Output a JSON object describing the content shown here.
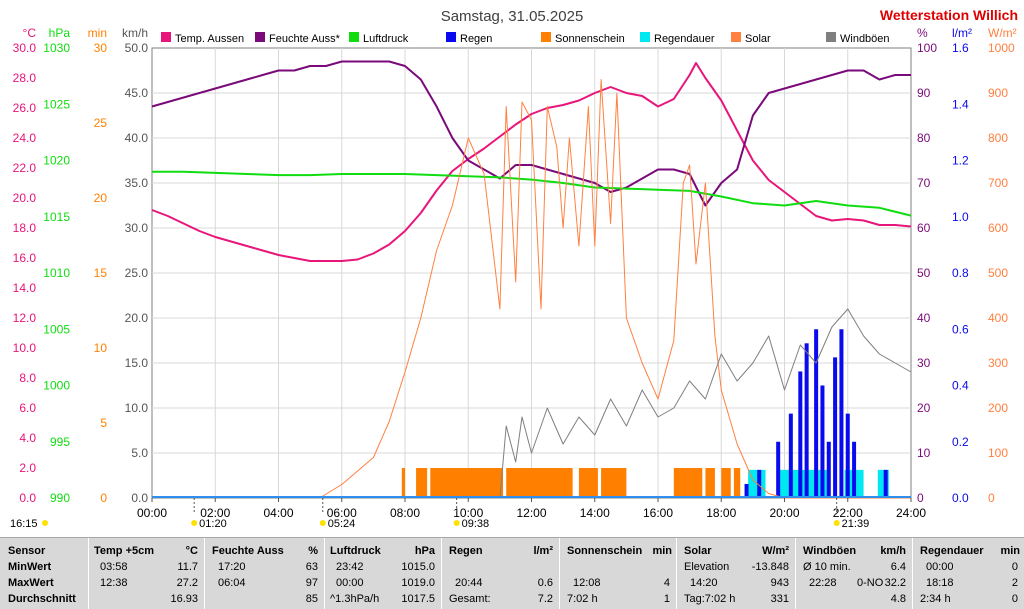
{
  "title": "Samstag, 31.05.2025",
  "station": "Wetterstation Willich",
  "colors": {
    "temp": "#e8157a",
    "hum": "#7a0a7a",
    "press": "#10dd10",
    "rain": "#0a0aee",
    "sunshine": "#ff8000",
    "raindur": "#00e8f0",
    "solar": "#ff8040",
    "gust": "#7f7f7f",
    "red": "#e00000",
    "grid": "#d8d8d8",
    "timeline": "#2f8fef"
  },
  "units": {
    "temp": "°C",
    "press": "hPa",
    "sun": "min",
    "wind": "km/h",
    "hum": "%",
    "rain": "l/m²",
    "solar": "W/m²"
  },
  "chart_data": {
    "type": "line",
    "title": "Samstag, 31.05.2025",
    "x_range": [
      "00:00",
      "24:00"
    ],
    "x_ticks": [
      "00:00",
      "02:00",
      "04:00",
      "06:00",
      "08:00",
      "10:00",
      "12:00",
      "14:00",
      "16:00",
      "18:00",
      "20:00",
      "22:00",
      "24:00"
    ],
    "axes": {
      "temp": {
        "unit": "°C",
        "ylim": [
          0,
          30
        ],
        "ticks": [
          "0.0",
          "2.0",
          "4.0",
          "6.0",
          "8.0",
          "10.0",
          "12.0",
          "14.0",
          "16.0",
          "18.0",
          "20.0",
          "22.0",
          "24.0",
          "26.0",
          "28.0",
          "30.0"
        ]
      },
      "press": {
        "unit": "hPa",
        "ylim": [
          990,
          1030
        ],
        "ticks": [
          "990",
          "995",
          "1000",
          "1005",
          "1010",
          "1015",
          "1020",
          "1025",
          "1030"
        ]
      },
      "sun": {
        "unit": "min",
        "ylim": [
          0,
          30
        ],
        "ticks": [
          "0",
          "5",
          "10",
          "15",
          "20",
          "25",
          "30"
        ]
      },
      "wind": {
        "unit": "km/h",
        "ylim": [
          0,
          50
        ],
        "ticks": [
          "0.0",
          "5.0",
          "10.0",
          "15.0",
          "20.0",
          "25.0",
          "30.0",
          "35.0",
          "40.0",
          "45.0",
          "50.0"
        ]
      },
      "hum": {
        "unit": "%",
        "ylim": [
          0,
          100
        ],
        "ticks": [
          "0",
          "10",
          "20",
          "30",
          "40",
          "50",
          "60",
          "70",
          "80",
          "90",
          "100"
        ]
      },
      "rain": {
        "unit": "l/m²",
        "ylim": [
          0,
          1.6
        ],
        "ticks": [
          "0.0",
          "0.2",
          "0.4",
          "0.6",
          "0.8",
          "1.0",
          "1.2",
          "1.4",
          "1.6"
        ]
      },
      "solar": {
        "unit": "W/m²",
        "ylim": [
          0,
          1000
        ],
        "ticks": [
          "0",
          "100",
          "200",
          "300",
          "400",
          "500",
          "600",
          "700",
          "800",
          "900",
          "1000"
        ]
      }
    },
    "legend": [
      {
        "name": "Temp. Aussen",
        "color": "#e8157a"
      },
      {
        "name": "Feuchte Auss*",
        "color": "#7a0a7a"
      },
      {
        "name": "Luftdruck",
        "color": "#10dd10"
      },
      {
        "name": "Regen",
        "color": "#0a0aee"
      },
      {
        "name": "Sonnenschein",
        "color": "#ff8000"
      },
      {
        "name": "Regendauer",
        "color": "#00e8f0"
      },
      {
        "name": "Solar",
        "color": "#ff8040"
      },
      {
        "name": "Windböen",
        "color": "#7f7f7f"
      }
    ],
    "series": [
      {
        "name": "Temp. Aussen",
        "axis": "temp",
        "x": [
          0,
          0.5,
          1,
          1.5,
          2,
          2.5,
          3,
          3.5,
          4,
          4.5,
          5,
          5.5,
          6,
          6.5,
          7,
          7.5,
          8,
          8.5,
          9,
          9.5,
          10,
          10.5,
          11,
          11.5,
          12,
          12.5,
          13,
          13.5,
          14,
          14.5,
          15,
          15.5,
          16,
          16.5,
          17,
          17.2,
          17.5,
          18,
          18.5,
          19,
          19.5,
          20,
          20.5,
          21,
          21.5,
          22,
          22.5,
          23,
          23.5,
          24
        ],
        "y": [
          19.2,
          18.8,
          18.3,
          17.8,
          17.4,
          17.1,
          16.8,
          16.5,
          16.2,
          16.0,
          15.8,
          15.8,
          15.8,
          15.9,
          16.3,
          16.9,
          17.8,
          19.0,
          20.5,
          21.8,
          22.6,
          23.3,
          24.1,
          24.9,
          25.6,
          26.0,
          26.2,
          26.5,
          27.0,
          27.4,
          27.0,
          26.8,
          26.1,
          26.6,
          28.2,
          29.0,
          28.0,
          26.5,
          24.5,
          22.5,
          21.2,
          20.4,
          19.6,
          18.8,
          18.5,
          18.6,
          18.5,
          18.2,
          18.2,
          18.1
        ]
      },
      {
        "name": "Feuchte Auss*",
        "axis": "hum",
        "x": [
          0,
          0.5,
          1,
          1.5,
          2,
          2.5,
          3,
          3.5,
          4,
          4.5,
          5,
          5.5,
          6,
          6.5,
          7,
          7.5,
          8,
          8.5,
          9,
          9.5,
          10,
          10.5,
          11,
          11.5,
          12,
          12.5,
          13,
          13.5,
          14,
          14.5,
          15,
          15.5,
          16,
          16.5,
          17,
          17.5,
          18,
          18.5,
          19,
          19.5,
          20,
          20.5,
          21,
          21.5,
          22,
          22.5,
          23,
          23.5,
          24
        ],
        "y": [
          87,
          88,
          89,
          90,
          91,
          92,
          93,
          94,
          95,
          95,
          96,
          96,
          97,
          97,
          97,
          97,
          96,
          93,
          87,
          80,
          75,
          73,
          71,
          74,
          74,
          73,
          72,
          71,
          70,
          68,
          69,
          71,
          73,
          73,
          72,
          65,
          70,
          73,
          85,
          90,
          91,
          92,
          93,
          94,
          95,
          95,
          93,
          94,
          94
        ]
      },
      {
        "name": "Luftdruck",
        "axis": "press",
        "x": [
          0,
          1,
          2,
          3,
          4,
          5,
          6,
          7,
          8,
          9,
          10,
          11,
          12,
          13,
          14,
          15,
          16,
          17,
          18,
          19,
          20,
          21,
          22,
          23,
          24
        ],
        "y": [
          1019.0,
          1019.0,
          1018.9,
          1018.8,
          1018.7,
          1018.7,
          1018.8,
          1018.8,
          1018.8,
          1018.7,
          1018.6,
          1018.5,
          1018.3,
          1018.0,
          1017.6,
          1017.5,
          1017.4,
          1017.3,
          1016.8,
          1016.2,
          1016.0,
          1016.4,
          1016.0,
          1015.8,
          1015.1
        ]
      },
      {
        "name": "Solar",
        "axis": "solar",
        "x": [
          0,
          5.3,
          6,
          7,
          7.5,
          8,
          8.5,
          9,
          9.5,
          10,
          10.5,
          11,
          11.2,
          11.5,
          11.7,
          12,
          12.3,
          12.5,
          12.8,
          13,
          13.2,
          13.5,
          13.8,
          14,
          14.2,
          14.5,
          14.7,
          15,
          15.5,
          16,
          16.5,
          16.8,
          17,
          17.2,
          17.5,
          17.8,
          18,
          18.5,
          19,
          19.5,
          20,
          24
        ],
        "y": [
          0,
          0,
          30,
          90,
          170,
          280,
          400,
          550,
          650,
          800,
          720,
          420,
          870,
          480,
          880,
          840,
          420,
          870,
          780,
          600,
          800,
          560,
          870,
          560,
          930,
          610,
          900,
          400,
          300,
          220,
          350,
          700,
          740,
          520,
          700,
          360,
          240,
          120,
          40,
          10,
          0,
          0
        ]
      },
      {
        "name": "Windböen",
        "axis": "wind",
        "x": [
          0,
          11,
          11.2,
          11.5,
          11.7,
          12,
          12.5,
          13,
          13.5,
          14,
          14.5,
          15,
          15.5,
          16,
          16.5,
          17,
          17.5,
          18,
          18.5,
          19,
          19.5,
          20,
          20.5,
          21,
          21.5,
          22,
          22.5,
          23,
          23.5,
          24
        ],
        "y": [
          0,
          0,
          8,
          4,
          9,
          5,
          10,
          6,
          9,
          7,
          11,
          8,
          12,
          9,
          10,
          13,
          11,
          16,
          13,
          15,
          18,
          12,
          17,
          15,
          19,
          21,
          18,
          16,
          15,
          14
        ]
      },
      {
        "name": "Regen",
        "axis": "rain",
        "x": [
          18.8,
          19.2,
          19.8,
          20.2,
          20.5,
          20.7,
          21,
          21.2,
          21.4,
          21.6,
          21.8,
          22,
          22.2,
          23.2
        ],
        "y": [
          0.05,
          0.1,
          0.2,
          0.3,
          0.45,
          0.55,
          0.6,
          0.4,
          0.2,
          0.5,
          0.6,
          0.3,
          0.2,
          0.1
        ]
      }
    ],
    "bars": [
      {
        "name": "Sonnenschein",
        "axis": "sun",
        "value": 2,
        "intervals": [
          [
            7.9,
            8.0
          ],
          [
            8.35,
            8.7
          ],
          [
            8.8,
            11.1
          ],
          [
            11.2,
            13.3
          ],
          [
            13.5,
            14.1
          ],
          [
            14.2,
            15.0
          ],
          [
            16.5,
            17.4
          ],
          [
            17.5,
            17.8
          ],
          [
            18.0,
            18.3
          ],
          [
            18.4,
            18.6
          ]
        ]
      },
      {
        "name": "Regendauer",
        "axis": "rain",
        "value": 0.1,
        "intervals": [
          [
            18.85,
            19.4
          ],
          [
            19.85,
            21.35
          ],
          [
            21.9,
            22.5
          ],
          [
            22.95,
            23.3
          ]
        ]
      }
    ]
  },
  "timeline_marks": [
    {
      "label": "01:20"
    },
    {
      "label": "05:24"
    },
    {
      "label": "09:38"
    },
    {
      "label": "21:39"
    }
  ],
  "current_time": "16:15",
  "stats": {
    "row_labels": [
      "Sensor",
      "MinWert",
      "MaxWert",
      "Durchschnitt"
    ],
    "temp": {
      "head": "Temp +5cm",
      "unit": "°C",
      "min_t": "03:58",
      "min": "11.7",
      "max_t": "12:38",
      "max": "27.2",
      "avg": "16.93"
    },
    "hum": {
      "head": "Feuchte Auss",
      "unit": "%",
      "min_t": "17:20",
      "min": "63",
      "max_t": "06:04",
      "max": "97",
      "avg": "85"
    },
    "press": {
      "head": "Luftdruck",
      "unit": "hPa",
      "min_t": "23:42",
      "min": "1015.0",
      "max_t": "00:00",
      "max": "1019.0",
      "trend": "^1.3hPa/h",
      "avg": "1017.5"
    },
    "rain": {
      "head": "Regen",
      "unit": "l/m²",
      "max_t": "20:44",
      "max": "0.6",
      "total_label": "Gesamt:",
      "total": "7.2"
    },
    "sun": {
      "head": "Sonnenschein",
      "unit": "min",
      "max_t": "12:08",
      "max": "4",
      "total_label": "7:02 h",
      "total": "1"
    },
    "solar": {
      "head": "Solar",
      "unit": "W/m²",
      "elev_label": "Elevation",
      "elev": "-13.848",
      "max_t": "14:20",
      "max": "943",
      "day_label": "Tag:7:02 h",
      "avg": "331"
    },
    "wind": {
      "head": "Windböen",
      "unit": "km/h",
      "avg10_label": "Ø 10 min.",
      "avg10": "6.4",
      "max_t": "22:28",
      "dir": "0-NO",
      "max": "32.2",
      "avg": "4.8"
    },
    "raindur": {
      "head": "Regendauer",
      "unit": "min",
      "min_t": "00:00",
      "min": "0",
      "max_t": "18:18",
      "max": "2",
      "total_label": "2:34 h",
      "total": "0"
    }
  }
}
